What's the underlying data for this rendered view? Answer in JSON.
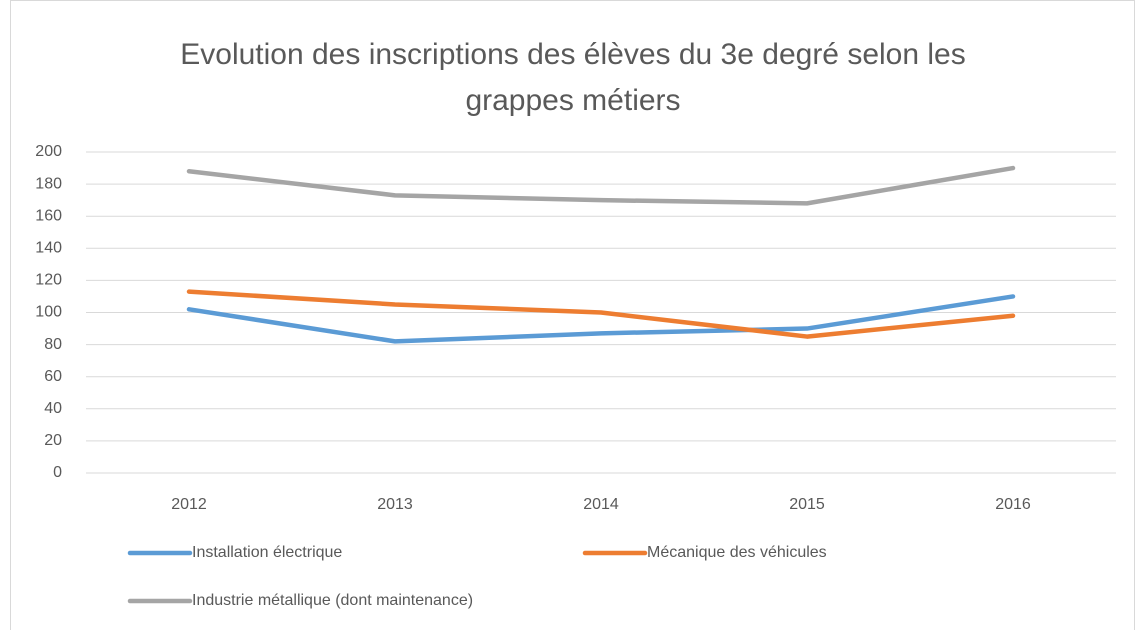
{
  "chart_data": {
    "type": "line",
    "title": "Evolution des inscriptions des élèves du 3e degré selon les grappes métiers",
    "categories": [
      "2012",
      "2013",
      "2014",
      "2015",
      "2016"
    ],
    "series": [
      {
        "name": "Installation électrique",
        "color": "#5b9bd5",
        "values": [
          102,
          82,
          87,
          90,
          110
        ]
      },
      {
        "name": "Mécanique des véhicules",
        "color": "#ed7d31",
        "values": [
          113,
          105,
          100,
          85,
          98
        ]
      },
      {
        "name": "Industrie métallique (dont maintenance)",
        "color": "#a5a5a5",
        "values": [
          188,
          173,
          170,
          168,
          190
        ]
      }
    ],
    "ylim": [
      0,
      200
    ],
    "yticks": [
      0,
      20,
      40,
      60,
      80,
      100,
      120,
      140,
      160,
      180,
      200
    ],
    "grid": true,
    "legend": "bottom"
  }
}
